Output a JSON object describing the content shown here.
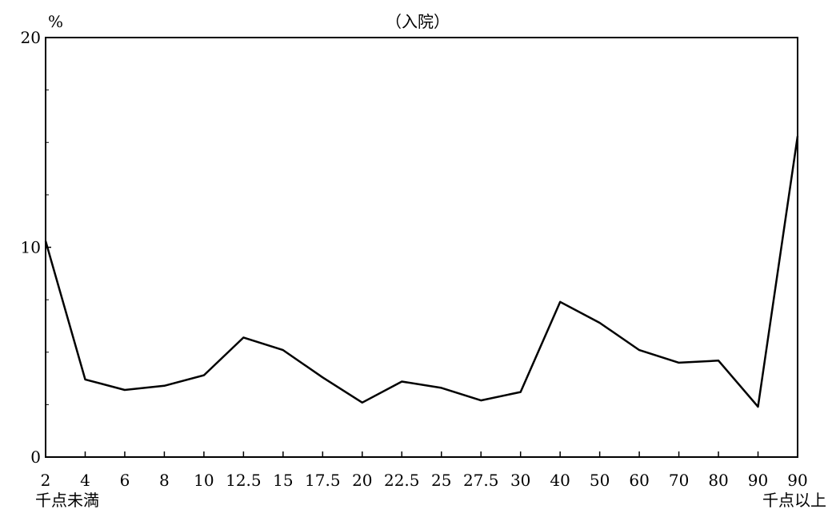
{
  "chart_data": {
    "type": "line",
    "title": "（入院）",
    "ylabel": "%",
    "ylim": [
      0,
      20
    ],
    "yticks": [
      0,
      10,
      20
    ],
    "categories": [
      "2",
      "4",
      "6",
      "8",
      "10",
      "12.5",
      "15",
      "17.5",
      "20",
      "22.5",
      "25",
      "27.5",
      "30",
      "40",
      "50",
      "60",
      "70",
      "80",
      "90",
      "90"
    ],
    "values": [
      10.3,
      3.7,
      3.2,
      3.4,
      3.9,
      5.7,
      5.1,
      3.8,
      2.6,
      3.6,
      3.3,
      2.7,
      3.1,
      7.4,
      6.4,
      5.1,
      4.5,
      4.6,
      2.4,
      15.3
    ],
    "x_first_sublabel": "千点未満",
    "x_last_sublabel": "千点以上",
    "grid": false,
    "line_color": "#000000"
  }
}
